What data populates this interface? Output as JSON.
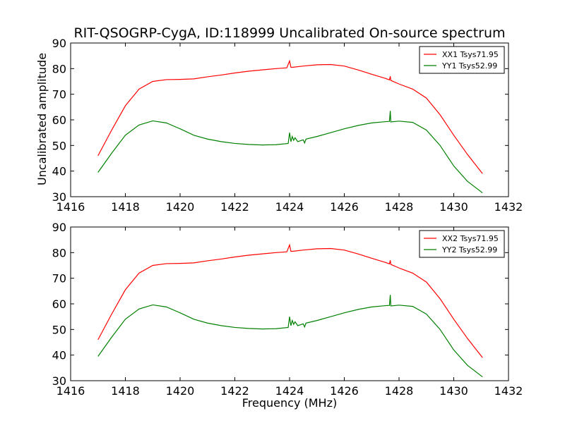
{
  "title": "RIT-QSOGRP-CygA, ID:118999 Uncalibrated On-source spectrum",
  "xlabel": "Frequency (MHz)",
  "ylabel": "Uncalibrated amplitude",
  "colors": {
    "xx": "#ff0000",
    "yy": "#008000"
  },
  "chart_data": [
    {
      "type": "line",
      "xlim": [
        1416,
        1432
      ],
      "ylim": [
        30,
        90
      ],
      "xticks": [
        1416,
        1418,
        1420,
        1422,
        1424,
        1426,
        1428,
        1430,
        1432
      ],
      "yticks": [
        30,
        40,
        50,
        60,
        70,
        80,
        90
      ],
      "xlabel": "",
      "ylabel": "Uncalibrated amplitude",
      "legend_position": "top-right",
      "series": [
        {
          "name": "XX1 Tsys71.95",
          "color": "#ff0000",
          "x": [
            1417.0,
            1417.5,
            1418.0,
            1418.5,
            1419.0,
            1419.5,
            1420.0,
            1420.5,
            1421.0,
            1421.5,
            1422.0,
            1422.5,
            1423.0,
            1423.5,
            1423.9,
            1424.0,
            1424.05,
            1424.1,
            1424.5,
            1425.0,
            1425.5,
            1426.0,
            1426.5,
            1427.0,
            1427.5,
            1427.65,
            1427.68,
            1427.7,
            1428.0,
            1428.5,
            1429.0,
            1429.5,
            1430.0,
            1430.5,
            1431.05
          ],
          "y": [
            46.0,
            56.0,
            65.5,
            72.0,
            75.0,
            75.7,
            75.8,
            76.0,
            76.8,
            77.5,
            78.3,
            79.0,
            79.5,
            80.0,
            80.3,
            83.0,
            80.5,
            80.5,
            81.0,
            81.5,
            81.6,
            81.0,
            79.5,
            77.8,
            76.2,
            75.6,
            77.0,
            75.4,
            74.0,
            72.0,
            68.5,
            62.0,
            54.0,
            46.5,
            39.0
          ]
        },
        {
          "name": "YY1 Tsys52.99",
          "color": "#008000",
          "x": [
            1417.0,
            1417.5,
            1418.0,
            1418.5,
            1419.0,
            1419.5,
            1420.0,
            1420.5,
            1421.0,
            1421.5,
            1422.0,
            1422.5,
            1423.0,
            1423.5,
            1423.95,
            1424.0,
            1424.05,
            1424.1,
            1424.15,
            1424.2,
            1424.3,
            1424.5,
            1424.55,
            1424.6,
            1425.0,
            1425.5,
            1426.0,
            1426.5,
            1427.0,
            1427.5,
            1427.65,
            1427.68,
            1427.7,
            1428.0,
            1428.5,
            1429.0,
            1429.5,
            1430.0,
            1430.5,
            1431.05
          ],
          "y": [
            39.5,
            47.0,
            54.0,
            58.0,
            59.6,
            58.8,
            56.5,
            54.0,
            52.5,
            51.5,
            50.8,
            50.4,
            50.2,
            50.3,
            50.8,
            55.0,
            51.5,
            53.5,
            52.0,
            53.0,
            51.5,
            52.2,
            51.0,
            52.5,
            53.5,
            55.0,
            56.5,
            57.8,
            58.8,
            59.3,
            59.4,
            63.5,
            59.2,
            59.5,
            59.0,
            56.0,
            50.0,
            42.0,
            36.0,
            31.5
          ]
        }
      ]
    },
    {
      "type": "line",
      "xlim": [
        1416,
        1432
      ],
      "ylim": [
        30,
        90
      ],
      "xticks": [
        1416,
        1418,
        1420,
        1422,
        1424,
        1426,
        1428,
        1430,
        1432
      ],
      "yticks": [
        30,
        40,
        50,
        60,
        70,
        80,
        90
      ],
      "xlabel": "Frequency (MHz)",
      "ylabel": "",
      "legend_position": "top-right",
      "series": [
        {
          "name": "XX2 Tsys71.95",
          "color": "#ff0000",
          "x": [
            1417.0,
            1417.5,
            1418.0,
            1418.5,
            1419.0,
            1419.5,
            1420.0,
            1420.5,
            1421.0,
            1421.5,
            1422.0,
            1422.5,
            1423.0,
            1423.5,
            1423.9,
            1424.0,
            1424.05,
            1424.1,
            1424.5,
            1425.0,
            1425.5,
            1426.0,
            1426.5,
            1427.0,
            1427.5,
            1427.65,
            1427.68,
            1427.7,
            1428.0,
            1428.5,
            1429.0,
            1429.5,
            1430.0,
            1430.5,
            1431.05
          ],
          "y": [
            46.0,
            56.0,
            65.5,
            72.0,
            75.0,
            75.7,
            75.8,
            76.0,
            76.8,
            77.5,
            78.3,
            79.0,
            79.5,
            80.0,
            80.3,
            83.0,
            80.5,
            80.5,
            81.0,
            81.5,
            81.6,
            81.0,
            79.5,
            77.8,
            76.2,
            75.6,
            77.0,
            75.4,
            74.0,
            72.0,
            68.5,
            62.0,
            54.0,
            46.5,
            39.0
          ]
        },
        {
          "name": "YY2 Tsys52.99",
          "color": "#008000",
          "x": [
            1417.0,
            1417.5,
            1418.0,
            1418.5,
            1419.0,
            1419.5,
            1420.0,
            1420.5,
            1421.0,
            1421.5,
            1422.0,
            1422.5,
            1423.0,
            1423.5,
            1423.95,
            1424.0,
            1424.05,
            1424.1,
            1424.15,
            1424.2,
            1424.3,
            1424.5,
            1424.55,
            1424.6,
            1425.0,
            1425.5,
            1426.0,
            1426.5,
            1427.0,
            1427.5,
            1427.65,
            1427.68,
            1427.7,
            1428.0,
            1428.5,
            1429.0,
            1429.5,
            1430.0,
            1430.5,
            1431.05
          ],
          "y": [
            39.5,
            47.0,
            54.0,
            58.0,
            59.6,
            58.8,
            56.5,
            54.0,
            52.5,
            51.5,
            50.8,
            50.4,
            50.2,
            50.3,
            50.8,
            55.0,
            51.5,
            53.5,
            52.0,
            53.0,
            51.5,
            52.2,
            51.0,
            52.5,
            53.5,
            55.0,
            56.5,
            57.8,
            58.8,
            59.3,
            59.4,
            63.5,
            59.2,
            59.5,
            59.0,
            56.0,
            50.0,
            42.0,
            36.0,
            31.5
          ]
        }
      ]
    }
  ]
}
